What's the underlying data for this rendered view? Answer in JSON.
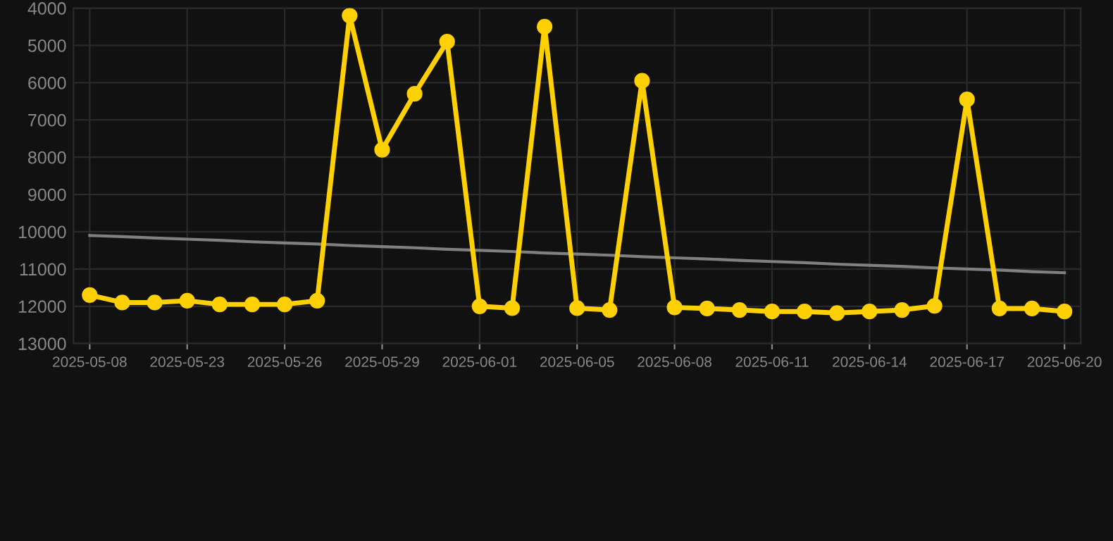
{
  "chart_data": {
    "type": "line",
    "categories": [
      "2025-05-08",
      null,
      null,
      "2025-05-23",
      null,
      null,
      "2025-05-26",
      null,
      null,
      "2025-05-29",
      null,
      null,
      "2025-06-01",
      null,
      null,
      "2025-06-05",
      null,
      null,
      "2025-06-08",
      null,
      null,
      "2025-06-11",
      null,
      null,
      "2025-06-14",
      null,
      null,
      "2025-06-17",
      null,
      null,
      "2025-06-20"
    ],
    "series": [
      {
        "color": "#ffd000",
        "marker": "circle",
        "values": [
          11700,
          11900,
          11900,
          11850,
          11950,
          11950,
          11950,
          11850,
          4200,
          7800,
          6300,
          4900,
          12000,
          12050,
          4500,
          12050,
          12100,
          5950,
          12030,
          12060,
          12100,
          12140,
          12140,
          12180,
          12140,
          12100,
          11990,
          6450,
          12060,
          12060,
          12140
        ]
      },
      {
        "type": "line",
        "color": "#808080",
        "marker": "none",
        "values": [
          10100,
          10130,
          10170,
          10200,
          10230,
          10270,
          10300,
          10330,
          10370,
          10400,
          10430,
          10470,
          10500,
          10530,
          10570,
          10600,
          10630,
          10670,
          10700,
          10730,
          10770,
          10800,
          10830,
          10870,
          10900,
          10930,
          10970,
          11000,
          11030,
          11070,
          11100
        ]
      }
    ],
    "ylim": [
      13000,
      4000
    ],
    "yticks": [
      4000,
      5000,
      6000,
      7000,
      8000,
      9000,
      10000,
      11000,
      12000,
      13000
    ],
    "grid": true,
    "line_style": "solid"
  }
}
